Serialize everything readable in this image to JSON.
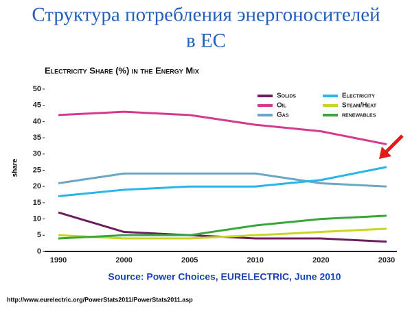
{
  "header": {
    "title_line1": "Структура потребления энергоносителей",
    "title_line2": "в ЕС"
  },
  "chart_data": {
    "type": "line",
    "title": "Electricity Share (%) in the Energy Mix",
    "y_label": "share",
    "categories": [
      "1990",
      "2000",
      "2005",
      "2010",
      "2020",
      "2030"
    ],
    "series": [
      {
        "name": "Solids",
        "color": "#6b1f5e",
        "values": [
          12,
          6,
          5,
          4,
          4,
          3
        ]
      },
      {
        "name": "Oil",
        "color": "#d63a8e",
        "values": [
          42,
          43,
          42,
          39,
          37,
          33
        ]
      },
      {
        "name": "Gas",
        "color": "#6aa6c6",
        "values": [
          21,
          24,
          24,
          24,
          21,
          20
        ]
      },
      {
        "name": "Electricity",
        "color": "#28b5e8",
        "values": [
          17,
          19,
          20,
          20,
          22,
          26
        ]
      },
      {
        "name": "Steam/Heat",
        "color": "#c8d620",
        "values": [
          5,
          4,
          4,
          5,
          6,
          7
        ]
      },
      {
        "name": "renewables",
        "color": "#3aa63a",
        "values": [
          4,
          5,
          5,
          8,
          10,
          11
        ]
      }
    ],
    "ylim": [
      0,
      50
    ],
    "yticks": [
      0,
      5,
      10,
      15,
      20,
      25,
      30,
      35,
      40,
      45,
      50
    ],
    "grid": false,
    "source": "Source: Power Choices, EURELECTRIC, June 2010"
  },
  "footer": {
    "url": "http://www.eurelectric.org/PowerStats2011/PowerStats2011.asp"
  }
}
